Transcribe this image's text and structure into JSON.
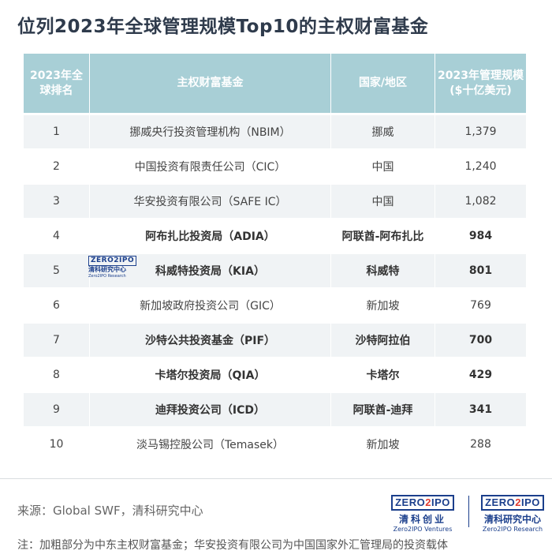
{
  "title": "位列2023年全球管理规模Top10的主权财富基金",
  "table": {
    "headers": {
      "rank_line1": "2023年全",
      "rank_line2": "球排名",
      "name": "主权财富基金",
      "region": "国家/地区",
      "aum_line1": "2023年管理规模",
      "aum_line2": "($十亿美元)"
    },
    "rows": [
      {
        "rank": "1",
        "name": "挪威央行投资管理机构（NBIM）",
        "region": "挪威",
        "aum": "1,379"
      },
      {
        "rank": "2",
        "name": "中国投资有限责任公司（CIC）",
        "region": "中国",
        "aum": "1,240"
      },
      {
        "rank": "3",
        "name": "华安投资有限公司（SAFE IC）",
        "region": "中国",
        "aum": "1,082"
      },
      {
        "rank": "4",
        "name": "阿布扎比投资局（ADIA）",
        "region": "阿联酋-阿布扎比",
        "aum": "984"
      },
      {
        "rank": "5",
        "name": "科威特投资局（KIA）",
        "region": "科威特",
        "aum": "801"
      },
      {
        "rank": "6",
        "name": "新加坡政府投资公司（GIC）",
        "region": "新加坡",
        "aum": "769"
      },
      {
        "rank": "7",
        "name": "沙特公共投资基金（PIF）",
        "region": "沙特阿拉伯",
        "aum": "700"
      },
      {
        "rank": "8",
        "name": "卡塔尔投资局（QIA）",
        "region": "卡塔尔",
        "aum": "429"
      },
      {
        "rank": "9",
        "name": "迪拜投资公司（ICD）",
        "region": "阿联酋-迪拜",
        "aum": "341"
      },
      {
        "rank": "10",
        "name": "淡马锡控股公司（Temasek）",
        "region": "新加坡",
        "aum": "288"
      }
    ]
  },
  "watermark": {
    "logo": "ZERO2IPO",
    "cn": "清科研究中心",
    "en": "Zero2IPO Research"
  },
  "footer": {
    "source": "来源：Global SWF，清科研究中心",
    "note": "注：加粗部分为中东主权财富基金；华安投资有限公司为中国国家外汇管理局的投资载体"
  },
  "logos": {
    "left": {
      "mark_a": "ZERO",
      "mark_b": "2",
      "mark_c": "IPO",
      "cn": "清科创业",
      "en": "Zero2IPO Ventures"
    },
    "right": {
      "mark_a": "ZERO",
      "mark_b": "2",
      "mark_c": "IPO",
      "cn": "清科研究中心",
      "en": "Zero2IPO Research"
    }
  },
  "colors": {
    "header_bg": "#a8cfd6",
    "row_alt_bg": "#f0f3f5",
    "brand_blue": "#1b3f8c",
    "brand_red": "#e03a2f"
  }
}
